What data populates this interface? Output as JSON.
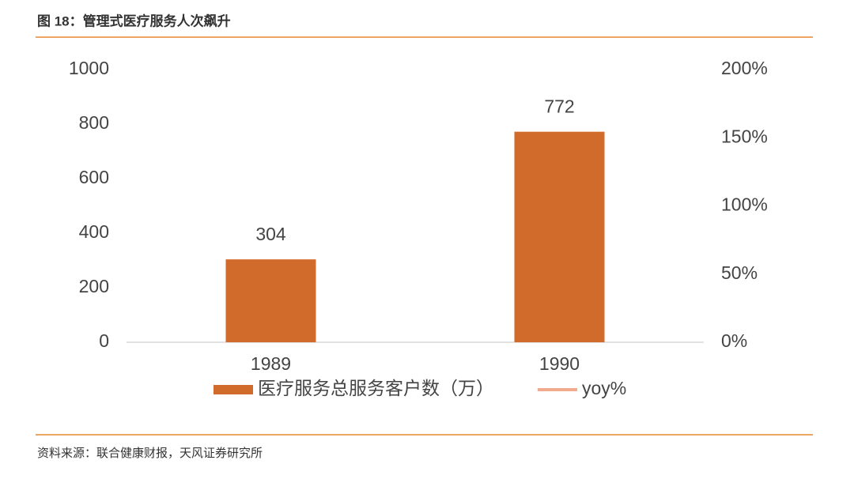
{
  "title": "图 18：管理式医疗服务人次飙升",
  "source": "资料来源：联合健康财报，天风证券研究所",
  "chart_data": {
    "type": "bar",
    "categories": [
      "1989",
      "1990"
    ],
    "series": [
      {
        "name": "医疗服务总服务客户数（万）",
        "color": "#d06b2b",
        "values": [
          304,
          772
        ]
      },
      {
        "name": "yoy%",
        "color": "#f2ab8f",
        "values": [
          null,
          null
        ],
        "axis": "y2",
        "type": "line"
      }
    ],
    "ylim": [
      0,
      1000
    ],
    "yticks": [
      0,
      200,
      400,
      600,
      800,
      1000
    ],
    "y2lim": [
      0,
      200
    ],
    "y2ticks": [
      {
        "value": 0,
        "label": "0%"
      },
      {
        "value": 50,
        "label": "50%"
      },
      {
        "value": 100,
        "label": "100%"
      },
      {
        "value": 150,
        "label": "150%"
      },
      {
        "value": 200,
        "label": "200%"
      }
    ],
    "legend": "bottom"
  }
}
